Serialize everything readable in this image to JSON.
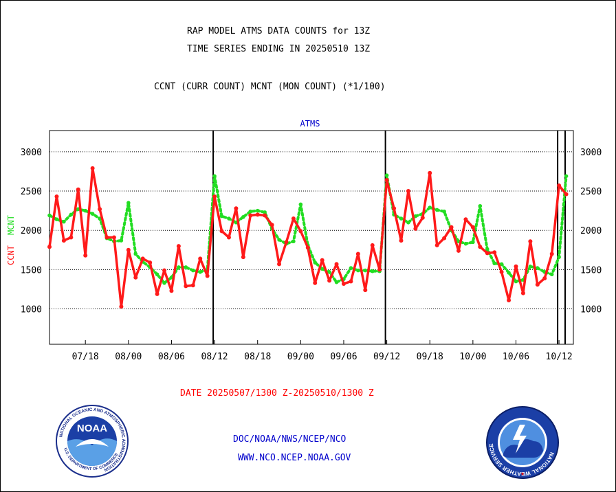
{
  "header": {
    "title_line1": "RAP MODEL ATMS DATA COUNTS for 13Z",
    "title_line2": "TIME SERIES ENDING IN 20250510 13Z",
    "subtitle": "CCNT (CURR COUNT) MCNT (MON COUNT) (*1/100)"
  },
  "footer": {
    "date_range": "DATE 20250507/1300 Z-20250510/1300 Z",
    "org_line": "DOC/NOAA/NWS/NCEP/NCO",
    "url": "WWW.NCO.NCEP.NOAA.GOV"
  },
  "logos": {
    "noaa": "NOAA",
    "noaa_ring": "NATIONAL OCEANIC AND ATMOSPHERIC ADMINISTRATION",
    "noaa_ring_bottom": "U.S. DEPARTMENT OF COMMERCE",
    "nws_ring": "NATIONAL WEATHER SERVICE"
  },
  "colors": {
    "ccnt": "#ff1a1a",
    "mcnt": "#22dd22",
    "panel_title": "#0000cc",
    "date_text": "#ff0000",
    "footer_text": "#0000cc"
  },
  "chart_data": {
    "type": "line",
    "panel_title": "ATMS",
    "ylabel_ccnt": "CCNT",
    "ylabel_mcnt": "MCNT",
    "y_ticks": [
      "1000",
      "1500",
      "2000",
      "2500",
      "3000"
    ],
    "y_tick_values": [
      1000,
      1500,
      2000,
      2500,
      3000
    ],
    "ylim": [
      550,
      3270
    ],
    "x_tick_labels": [
      "07/18",
      "08/00",
      "08/06",
      "08/12",
      "08/18",
      "09/00",
      "09/06",
      "09/12",
      "09/18",
      "10/00",
      "10/06",
      "10/12"
    ],
    "xlim": [
      0,
      73
    ],
    "x_tick_positions": [
      5,
      11,
      17,
      23,
      29,
      35,
      41,
      47,
      53,
      59,
      65,
      71
    ],
    "vertical_markers": [
      23,
      47,
      71
    ],
    "grid": "horizontal dotted",
    "series": [
      {
        "name": "CCNT",
        "values": [
          1790,
          2430,
          1870,
          1910,
          2520,
          1680,
          2790,
          2270,
          1910,
          1910,
          1030,
          1750,
          1400,
          1640,
          1590,
          1190,
          1490,
          1230,
          1800,
          1290,
          1300,
          1640,
          1420,
          2430,
          1990,
          1910,
          2280,
          1660,
          2190,
          2200,
          2190,
          2070,
          1570,
          1850,
          2150,
          1990,
          1780,
          1330,
          1620,
          1360,
          1570,
          1320,
          1350,
          1700,
          1240,
          1810,
          1500,
          2640,
          2280,
          1870,
          2500,
          2020,
          2160,
          2730,
          1810,
          1900,
          2040,
          1740,
          2140,
          2040,
          1790,
          1710,
          1720,
          1470,
          1110,
          1540,
          1200,
          1860,
          1310,
          1390,
          1700,
          2570,
          2460
        ]
      },
      {
        "name": "MCNT",
        "values": [
          2190,
          2140,
          2110,
          2200,
          2270,
          2250,
          2210,
          2150,
          1900,
          1860,
          1870,
          2350,
          1700,
          1600,
          1530,
          1440,
          1330,
          1400,
          1530,
          1530,
          1490,
          1470,
          1500,
          2690,
          2180,
          2150,
          2100,
          2170,
          2240,
          2250,
          2230,
          2020,
          1880,
          1830,
          1860,
          2330,
          1810,
          1590,
          1510,
          1470,
          1340,
          1380,
          1520,
          1490,
          1490,
          1480,
          1480,
          2700,
          2200,
          2150,
          2100,
          2180,
          2210,
          2290,
          2260,
          2240,
          2000,
          1860,
          1830,
          1850,
          2310,
          1760,
          1580,
          1570,
          1460,
          1350,
          1370,
          1540,
          1520,
          1470,
          1440,
          1660,
          2690
        ]
      }
    ]
  }
}
